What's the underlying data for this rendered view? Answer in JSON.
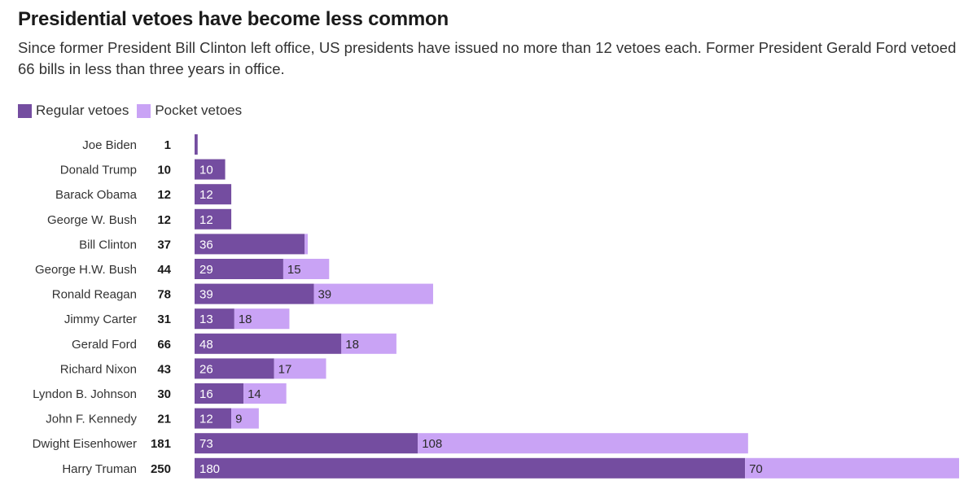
{
  "header": {
    "title": "Presidential vetoes have become less common",
    "subtitle": "Since former President Bill Clinton left office, US presidents have issued no more than 12 vetoes each. Former President Gerald Ford vetoed 66 bills in less than three years in office."
  },
  "legend": {
    "regular_label": "Regular vetoes",
    "pocket_label": "Pocket vetoes"
  },
  "colors": {
    "regular": "#744da0",
    "pocket": "#c9a3f5",
    "bar_label_regular": "#ffffff",
    "bar_label_pocket": "#2b2b2b"
  },
  "chart_data": {
    "type": "bar",
    "orientation": "horizontal",
    "stacked": true,
    "title": "Presidential vetoes have become less common",
    "categories": [
      "Joe Biden",
      "Donald Trump",
      "Barack Obama",
      "George W. Bush",
      "Bill Clinton",
      "George H.W. Bush",
      "Ronald Reagan",
      "Jimmy Carter",
      "Gerald Ford",
      "Richard Nixon",
      "Lyndon B. Johnson",
      "John F. Kennedy",
      "Dwight Eisenhower",
      "Harry Truman"
    ],
    "totals": [
      1,
      10,
      12,
      12,
      37,
      44,
      78,
      31,
      66,
      43,
      30,
      21,
      181,
      250
    ],
    "series": [
      {
        "name": "Regular vetoes",
        "values": [
          1,
          10,
          12,
          12,
          36,
          29,
          39,
          13,
          48,
          26,
          16,
          12,
          73,
          180
        ],
        "labels": [
          "",
          "10",
          "12",
          "12",
          "36",
          "29",
          "39",
          "13",
          "48",
          "26",
          "16",
          "12",
          "73",
          "180"
        ]
      },
      {
        "name": "Pocket vetoes",
        "values": [
          0,
          0,
          0,
          0,
          1,
          15,
          39,
          18,
          18,
          17,
          14,
          9,
          108,
          70
        ],
        "labels": [
          "",
          "",
          "",
          "",
          "",
          "15",
          "39",
          "18",
          "18",
          "17",
          "14",
          "9",
          "108",
          "70"
        ]
      }
    ],
    "xlim": [
      0,
      250
    ],
    "grid": false,
    "legend_position": "top-left"
  }
}
